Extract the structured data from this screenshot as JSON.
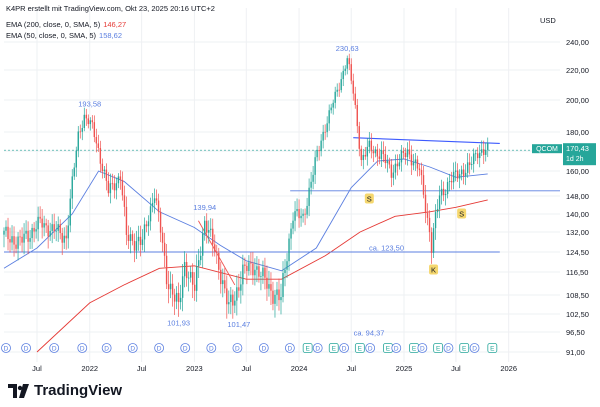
{
  "header": {
    "attribution": "K4PR erstellt mit TradingView.com, Okt 23, 2025 20:16 UTC+2",
    "ema_200_label": "EMA (200, close, 0, SMA, 5)",
    "ema_200_value": "146,27",
    "ema_50_label": "EMA (50, close, 0, SMA, 5)",
    "ema_50_value": "158,62",
    "currency": "USD"
  },
  "colors": {
    "candle_up": "#26a69a",
    "candle_down": "#ef5350",
    "ema_200": "#e53935",
    "ema_50": "#5b7fe0",
    "trendline": "#3d5afe",
    "annotation": "#5b7fe0",
    "ticker_badge": "#26a69a",
    "marker_yellow": "#f5d76e"
  },
  "ticker_badge": {
    "symbol": "QCOM",
    "price": "170,43",
    "countdown": "1d 2h"
  },
  "logo": {
    "text": "TradingView"
  },
  "chart_data": {
    "type": "candlestick",
    "y_axis_side": "right",
    "ylim": [
      91,
      244
    ],
    "yticks": [
      91.0,
      96.5,
      102.5,
      108.5,
      116.5,
      124.5,
      132.0,
      140.0,
      148.0,
      160.0,
      170.0,
      180.0,
      200.0,
      220.0,
      240.0
    ],
    "ytick_labels": [
      "91,00",
      "96,50",
      "102,50",
      "108,50",
      "116,50",
      "124,50",
      "132,00",
      "140,00",
      "148,00",
      "160,00",
      "170,00",
      "180,00",
      "200,00",
      "220,00",
      "240,00"
    ],
    "xlim": [
      "2021-03-08",
      "2026-06-29"
    ],
    "xticks": [
      "2021-07-01",
      "2022-01-01",
      "2022-07-01",
      "2023-01-01",
      "2023-07-01",
      "2024-01-01",
      "2024-07-01",
      "2025-01-01",
      "2025-07-01",
      "2026-01-01"
    ],
    "xtick_labels": [
      "Jul",
      "2022",
      "Jul",
      "2023",
      "Jul",
      "2024",
      "Jul",
      "2025",
      "Jul",
      "2026"
    ],
    "price_path": [
      {
        "date": "2021-03-08",
        "close": 131
      },
      {
        "date": "2021-05-03",
        "close": 128
      },
      {
        "date": "2021-07-12",
        "close": 136
      },
      {
        "date": "2021-10-11",
        "close": 130
      },
      {
        "date": "2021-11-22",
        "close": 178
      },
      {
        "date": "2021-12-13",
        "close": 190
      },
      {
        "date": "2022-01-10",
        "close": 183
      },
      {
        "date": "2022-03-07",
        "close": 150
      },
      {
        "date": "2022-04-18",
        "close": 158
      },
      {
        "date": "2022-05-09",
        "close": 130
      },
      {
        "date": "2022-07-04",
        "close": 128
      },
      {
        "date": "2022-08-15",
        "close": 150
      },
      {
        "date": "2022-09-26",
        "close": 115
      },
      {
        "date": "2022-11-07",
        "close": 104
      },
      {
        "date": "2022-11-28",
        "close": 120
      },
      {
        "date": "2023-01-02",
        "close": 110
      },
      {
        "date": "2023-02-06",
        "close": 137
      },
      {
        "date": "2023-03-13",
        "close": 125
      },
      {
        "date": "2023-05-01",
        "close": 104
      },
      {
        "date": "2023-05-22",
        "close": 108
      },
      {
        "date": "2023-06-19",
        "close": 117
      },
      {
        "date": "2023-07-31",
        "close": 119
      },
      {
        "date": "2023-09-18",
        "close": 111
      },
      {
        "date": "2023-10-30",
        "close": 107
      },
      {
        "date": "2023-12-11",
        "close": 140
      },
      {
        "date": "2024-01-15",
        "close": 138
      },
      {
        "date": "2024-03-04",
        "close": 168
      },
      {
        "date": "2024-05-20",
        "close": 210
      },
      {
        "date": "2024-06-17",
        "close": 228
      },
      {
        "date": "2024-07-08",
        "close": 205
      },
      {
        "date": "2024-08-05",
        "close": 165
      },
      {
        "date": "2024-09-02",
        "close": 172
      },
      {
        "date": "2024-10-14",
        "close": 168
      },
      {
        "date": "2024-11-18",
        "close": 160
      },
      {
        "date": "2025-01-13",
        "close": 170
      },
      {
        "date": "2025-02-24",
        "close": 160
      },
      {
        "date": "2025-04-07",
        "close": 127
      },
      {
        "date": "2025-05-05",
        "close": 148
      },
      {
        "date": "2025-06-09",
        "close": 155
      },
      {
        "date": "2025-07-21",
        "close": 160
      },
      {
        "date": "2025-08-18",
        "close": 162
      },
      {
        "date": "2025-09-15",
        "close": 170
      },
      {
        "date": "2025-10-20",
        "close": 170.43
      }
    ],
    "series": [
      {
        "name": "EMA (200, close, 0, SMA, 5)",
        "points": [
          {
            "date": "2021-07-01",
            "value": 91
          },
          {
            "date": "2022-01-01",
            "value": 106
          },
          {
            "date": "2022-05-01",
            "value": 112
          },
          {
            "date": "2022-09-01",
            "value": 118
          },
          {
            "date": "2023-01-01",
            "value": 119
          },
          {
            "date": "2023-07-01",
            "value": 114
          },
          {
            "date": "2023-11-01",
            "value": 114
          },
          {
            "date": "2024-04-01",
            "value": 123
          },
          {
            "date": "2024-08-01",
            "value": 132
          },
          {
            "date": "2024-12-01",
            "value": 139
          },
          {
            "date": "2025-04-01",
            "value": 141
          },
          {
            "date": "2025-07-01",
            "value": 143
          },
          {
            "date": "2025-10-20",
            "value": 146.27
          }
        ]
      },
      {
        "name": "EMA (50, close, 0, SMA, 5)",
        "points": [
          {
            "date": "2021-03-08",
            "value": 118
          },
          {
            "date": "2021-07-01",
            "value": 126
          },
          {
            "date": "2021-11-01",
            "value": 140
          },
          {
            "date": "2022-02-01",
            "value": 160
          },
          {
            "date": "2022-05-01",
            "value": 155
          },
          {
            "date": "2022-09-01",
            "value": 141
          },
          {
            "date": "2023-01-01",
            "value": 134
          },
          {
            "date": "2023-04-01",
            "value": 127
          },
          {
            "date": "2023-07-01",
            "value": 121
          },
          {
            "date": "2023-11-01",
            "value": 117
          },
          {
            "date": "2024-03-01",
            "value": 126
          },
          {
            "date": "2024-07-01",
            "value": 152
          },
          {
            "date": "2024-10-01",
            "value": 165
          },
          {
            "date": "2025-01-01",
            "value": 166
          },
          {
            "date": "2025-04-01",
            "value": 162
          },
          {
            "date": "2025-07-01",
            "value": 157
          },
          {
            "date": "2025-10-20",
            "value": 158.62
          }
        ]
      }
    ],
    "lines": [
      {
        "name": "support-line",
        "y": 124.5,
        "from": "2021-03-08",
        "to": "2025-12-01"
      },
      {
        "name": "horizontal-line-150",
        "y": 150.5,
        "from": "2023-12-01",
        "to": "2026-06-29"
      },
      {
        "name": "resistance-trendline",
        "from_date": "2024-07-08",
        "from_y": 177,
        "to_date": "2025-12-01",
        "to_y": 174
      },
      {
        "name": "downtrend-line",
        "from_date": "2023-01-15",
        "from_y": 137,
        "to_date": "2023-05-22",
        "to_y": 112
      }
    ],
    "annotations": [
      {
        "text": "193,58",
        "date": "2022-01-01",
        "value": 193.58,
        "position": "above"
      },
      {
        "text": "139,94",
        "date": "2023-02-06",
        "value": 139.94,
        "position": "above"
      },
      {
        "text": "101,93",
        "date": "2022-11-07",
        "value": 101.93,
        "position": "below"
      },
      {
        "text": "101,47",
        "date": "2023-06-05",
        "value": 101.47,
        "position": "below"
      },
      {
        "text": "230,63",
        "date": "2024-06-17",
        "value": 230.63,
        "position": "above"
      },
      {
        "text": "ca. 123,50",
        "date": "2024-11-01",
        "value": 123.5,
        "position": "above"
      },
      {
        "text": "ca. 94,37",
        "date": "2024-09-01",
        "value": 94.37,
        "position": "above"
      }
    ],
    "markers": [
      {
        "text": "S",
        "date": "2024-09-02"
      },
      {
        "text": "S",
        "date": "2025-07-21"
      },
      {
        "text": "K",
        "date": "2025-04-14"
      }
    ],
    "events": [
      {
        "type": "D",
        "date": "2021-03-15"
      },
      {
        "type": "D",
        "date": "2021-05-24"
      },
      {
        "type": "D",
        "date": "2021-08-30"
      },
      {
        "type": "D",
        "date": "2021-12-06"
      },
      {
        "type": "D",
        "date": "2022-03-01"
      },
      {
        "type": "D",
        "date": "2022-05-31"
      },
      {
        "type": "D",
        "date": "2022-08-31"
      },
      {
        "type": "D",
        "date": "2022-11-30"
      },
      {
        "type": "D",
        "date": "2023-03-01"
      },
      {
        "type": "D",
        "date": "2023-05-31"
      },
      {
        "type": "D",
        "date": "2023-08-31"
      },
      {
        "type": "D",
        "date": "2023-11-30"
      },
      {
        "type": "E",
        "date": "2024-01-31"
      },
      {
        "type": "D",
        "date": "2024-03-06"
      },
      {
        "type": "E",
        "date": "2024-05-01"
      },
      {
        "type": "D",
        "date": "2024-06-06"
      },
      {
        "type": "E",
        "date": "2024-07-31"
      },
      {
        "type": "D",
        "date": "2024-09-05"
      },
      {
        "type": "E",
        "date": "2024-11-06"
      },
      {
        "type": "D",
        "date": "2024-12-05"
      },
      {
        "type": "E",
        "date": "2025-02-05"
      },
      {
        "type": "D",
        "date": "2025-03-06"
      },
      {
        "type": "E",
        "date": "2025-04-30"
      },
      {
        "type": "D",
        "date": "2025-06-05"
      },
      {
        "type": "E",
        "date": "2025-07-30"
      },
      {
        "type": "D",
        "date": "2025-09-04"
      },
      {
        "type": "E",
        "date": "2025-11-05"
      }
    ],
    "current_price": 170.43,
    "current_price_dashed_line": true,
    "grid": true
  }
}
